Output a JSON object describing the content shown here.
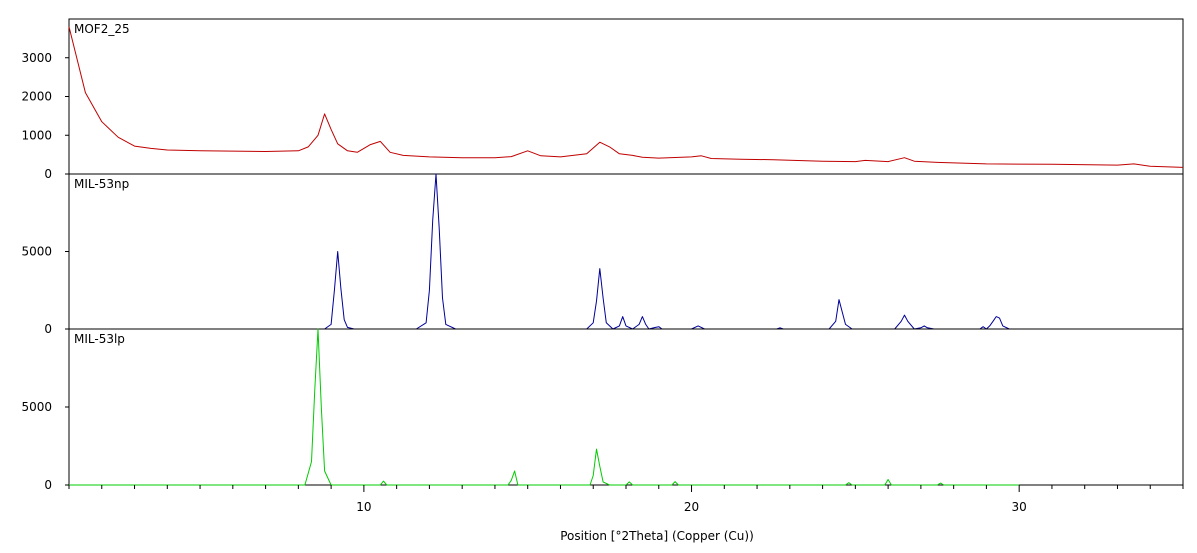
{
  "chart_data": {
    "type": "line",
    "xlabel": "Position [°2Theta] (Copper (Cu))",
    "xlim": [
      1.0,
      35.0
    ],
    "x_ticks": [
      10,
      20,
      30
    ],
    "panels": [
      {
        "name": "MOF2_25",
        "color": "#c00000",
        "ylim": [
          0,
          4000
        ],
        "y_ticks": [
          0,
          1000,
          2000,
          3000
        ],
        "x": [
          1.0,
          1.5,
          2.0,
          2.5,
          3.0,
          3.5,
          4.0,
          5.0,
          6.0,
          7.0,
          8.0,
          8.3,
          8.6,
          8.8,
          9.0,
          9.2,
          9.5,
          9.8,
          10.2,
          10.5,
          10.8,
          11.2,
          12.0,
          13.0,
          14.0,
          14.5,
          15.0,
          15.4,
          16.0,
          16.8,
          17.2,
          17.5,
          17.8,
          18.2,
          18.5,
          19.0,
          20.0,
          20.3,
          20.6,
          21.5,
          22.5,
          24.0,
          25.0,
          25.3,
          26.0,
          26.5,
          26.8,
          27.5,
          29.0,
          31.0,
          33.0,
          33.5,
          34.0,
          35.0
        ],
        "y": [
          3800,
          2100,
          1350,
          950,
          720,
          660,
          620,
          600,
          590,
          580,
          600,
          700,
          1000,
          1550,
          1150,
          780,
          600,
          560,
          760,
          840,
          560,
          480,
          440,
          420,
          420,
          450,
          600,
          470,
          440,
          520,
          820,
          700,
          520,
          480,
          430,
          410,
          440,
          470,
          400,
          380,
          370,
          330,
          320,
          350,
          320,
          420,
          330,
          300,
          260,
          250,
          230,
          260,
          200,
          170
        ]
      },
      {
        "name": "MIL-53np",
        "color": "#000099",
        "ylim": [
          0,
          10000
        ],
        "y_ticks": [
          0,
          5000
        ],
        "x": [
          1.0,
          8.8,
          9.0,
          9.1,
          9.2,
          9.3,
          9.4,
          9.5,
          9.7,
          11.6,
          11.9,
          12.0,
          12.1,
          12.2,
          12.3,
          12.4,
          12.5,
          12.8,
          16.8,
          17.0,
          17.1,
          17.2,
          17.3,
          17.4,
          17.6,
          17.8,
          17.9,
          18.0,
          18.2,
          18.4,
          18.5,
          18.6,
          18.7,
          18.9,
          19.0,
          19.1,
          20.0,
          20.2,
          20.4,
          22.6,
          22.7,
          22.8,
          24.2,
          24.4,
          24.5,
          24.6,
          24.7,
          24.9,
          26.2,
          26.4,
          26.5,
          26.6,
          26.8,
          27.0,
          27.1,
          27.2,
          27.4,
          28.8,
          28.9,
          29.0,
          29.1,
          29.2,
          29.3,
          29.4,
          29.5,
          29.7,
          35.0
        ],
        "y": [
          0,
          0,
          300,
          2500,
          5000,
          2600,
          600,
          100,
          0,
          0,
          400,
          2500,
          7000,
          10000,
          6500,
          2000,
          300,
          0,
          0,
          400,
          1800,
          3900,
          2000,
          400,
          0,
          200,
          800,
          200,
          0,
          300,
          800,
          300,
          0,
          100,
          150,
          0,
          0,
          200,
          0,
          0,
          80,
          0,
          0,
          500,
          1900,
          1100,
          300,
          0,
          0,
          500,
          900,
          500,
          0,
          80,
          200,
          80,
          0,
          0,
          150,
          0,
          200,
          500,
          800,
          700,
          200,
          0,
          0
        ]
      },
      {
        "name": "MIL-53lp",
        "color": "#00cc00",
        "ylim": [
          0,
          10000
        ],
        "y_ticks": [
          0,
          5000
        ],
        "x": [
          1.0,
          8.2,
          8.4,
          8.5,
          8.6,
          8.7,
          8.8,
          9.0,
          10.5,
          10.6,
          10.7,
          14.4,
          14.5,
          14.6,
          14.7,
          16.9,
          17.0,
          17.1,
          17.2,
          17.3,
          17.5,
          18.0,
          18.1,
          18.2,
          19.4,
          19.5,
          19.6,
          24.7,
          24.8,
          24.9,
          25.9,
          26.0,
          26.1,
          27.5,
          27.6,
          27.7,
          30.0
        ],
        "y": [
          0,
          0,
          1500,
          6000,
          10000,
          5000,
          900,
          0,
          0,
          250,
          0,
          0,
          300,
          900,
          0,
          0,
          600,
          2300,
          1200,
          200,
          0,
          0,
          200,
          0,
          0,
          220,
          0,
          0,
          150,
          0,
          0,
          350,
          0,
          0,
          120,
          0,
          0
        ]
      }
    ]
  }
}
